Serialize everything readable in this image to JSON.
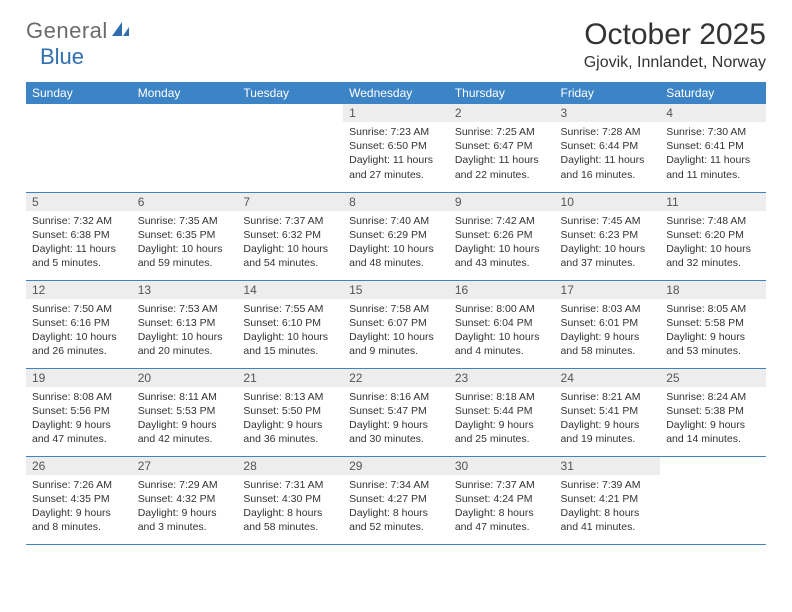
{
  "logo": {
    "text1": "General",
    "text2": "Blue",
    "color_gray": "#6b6b6b",
    "color_blue": "#2f6fb0"
  },
  "title": "October 2025",
  "location": "Gjovik, Innlandet, Norway",
  "header_bg": "#3c84c6",
  "header_text_color": "#ffffff",
  "daynum_bg": "#ededed",
  "row_border_color": "#3c84c6",
  "weekdays": [
    "Sunday",
    "Monday",
    "Tuesday",
    "Wednesday",
    "Thursday",
    "Friday",
    "Saturday"
  ],
  "weeks": [
    [
      null,
      null,
      null,
      {
        "n": "1",
        "sunrise": "7:23 AM",
        "sunset": "6:50 PM",
        "day_h": "11",
        "day_m": "27"
      },
      {
        "n": "2",
        "sunrise": "7:25 AM",
        "sunset": "6:47 PM",
        "day_h": "11",
        "day_m": "22"
      },
      {
        "n": "3",
        "sunrise": "7:28 AM",
        "sunset": "6:44 PM",
        "day_h": "11",
        "day_m": "16"
      },
      {
        "n": "4",
        "sunrise": "7:30 AM",
        "sunset": "6:41 PM",
        "day_h": "11",
        "day_m": "11"
      }
    ],
    [
      {
        "n": "5",
        "sunrise": "7:32 AM",
        "sunset": "6:38 PM",
        "day_h": "11",
        "day_m": "5"
      },
      {
        "n": "6",
        "sunrise": "7:35 AM",
        "sunset": "6:35 PM",
        "day_h": "10",
        "day_m": "59"
      },
      {
        "n": "7",
        "sunrise": "7:37 AM",
        "sunset": "6:32 PM",
        "day_h": "10",
        "day_m": "54"
      },
      {
        "n": "8",
        "sunrise": "7:40 AM",
        "sunset": "6:29 PM",
        "day_h": "10",
        "day_m": "48"
      },
      {
        "n": "9",
        "sunrise": "7:42 AM",
        "sunset": "6:26 PM",
        "day_h": "10",
        "day_m": "43"
      },
      {
        "n": "10",
        "sunrise": "7:45 AM",
        "sunset": "6:23 PM",
        "day_h": "10",
        "day_m": "37"
      },
      {
        "n": "11",
        "sunrise": "7:48 AM",
        "sunset": "6:20 PM",
        "day_h": "10",
        "day_m": "32"
      }
    ],
    [
      {
        "n": "12",
        "sunrise": "7:50 AM",
        "sunset": "6:16 PM",
        "day_h": "10",
        "day_m": "26"
      },
      {
        "n": "13",
        "sunrise": "7:53 AM",
        "sunset": "6:13 PM",
        "day_h": "10",
        "day_m": "20"
      },
      {
        "n": "14",
        "sunrise": "7:55 AM",
        "sunset": "6:10 PM",
        "day_h": "10",
        "day_m": "15"
      },
      {
        "n": "15",
        "sunrise": "7:58 AM",
        "sunset": "6:07 PM",
        "day_h": "10",
        "day_m": "9"
      },
      {
        "n": "16",
        "sunrise": "8:00 AM",
        "sunset": "6:04 PM",
        "day_h": "10",
        "day_m": "4"
      },
      {
        "n": "17",
        "sunrise": "8:03 AM",
        "sunset": "6:01 PM",
        "day_h": "9",
        "day_m": "58"
      },
      {
        "n": "18",
        "sunrise": "8:05 AM",
        "sunset": "5:58 PM",
        "day_h": "9",
        "day_m": "53"
      }
    ],
    [
      {
        "n": "19",
        "sunrise": "8:08 AM",
        "sunset": "5:56 PM",
        "day_h": "9",
        "day_m": "47"
      },
      {
        "n": "20",
        "sunrise": "8:11 AM",
        "sunset": "5:53 PM",
        "day_h": "9",
        "day_m": "42"
      },
      {
        "n": "21",
        "sunrise": "8:13 AM",
        "sunset": "5:50 PM",
        "day_h": "9",
        "day_m": "36"
      },
      {
        "n": "22",
        "sunrise": "8:16 AM",
        "sunset": "5:47 PM",
        "day_h": "9",
        "day_m": "30"
      },
      {
        "n": "23",
        "sunrise": "8:18 AM",
        "sunset": "5:44 PM",
        "day_h": "9",
        "day_m": "25"
      },
      {
        "n": "24",
        "sunrise": "8:21 AM",
        "sunset": "5:41 PM",
        "day_h": "9",
        "day_m": "19"
      },
      {
        "n": "25",
        "sunrise": "8:24 AM",
        "sunset": "5:38 PM",
        "day_h": "9",
        "day_m": "14"
      }
    ],
    [
      {
        "n": "26",
        "sunrise": "7:26 AM",
        "sunset": "4:35 PM",
        "day_h": "9",
        "day_m": "8"
      },
      {
        "n": "27",
        "sunrise": "7:29 AM",
        "sunset": "4:32 PM",
        "day_h": "9",
        "day_m": "3"
      },
      {
        "n": "28",
        "sunrise": "7:31 AM",
        "sunset": "4:30 PM",
        "day_h": "8",
        "day_m": "58"
      },
      {
        "n": "29",
        "sunrise": "7:34 AM",
        "sunset": "4:27 PM",
        "day_h": "8",
        "day_m": "52"
      },
      {
        "n": "30",
        "sunrise": "7:37 AM",
        "sunset": "4:24 PM",
        "day_h": "8",
        "day_m": "47"
      },
      {
        "n": "31",
        "sunrise": "7:39 AM",
        "sunset": "4:21 PM",
        "day_h": "8",
        "day_m": "41"
      },
      null
    ]
  ],
  "labels": {
    "sunrise": "Sunrise:",
    "sunset": "Sunset:",
    "daylight": "Daylight:",
    "hours": "hours",
    "and": "and",
    "minutes": "minutes."
  }
}
